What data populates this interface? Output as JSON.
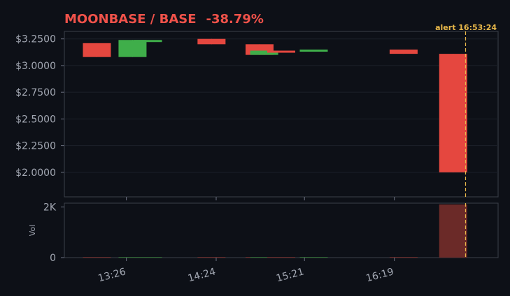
{
  "chart_data": {
    "type": "candlestick",
    "title": "MOONBASE / BASE",
    "change": "-38.79%",
    "colors": {
      "up": "#3fae4a",
      "down": "#e5473f",
      "alert": "#e8b84a",
      "volume_down": "#6b2a28",
      "volume_up": "#2f6b33"
    },
    "y_ticks": [
      "$3.2500",
      "$3.0000",
      "$2.7500",
      "$2.5000",
      "$2.2500",
      "$2.0000"
    ],
    "y_tick_values": [
      3.25,
      3.0,
      2.75,
      2.5,
      2.25,
      2.0
    ],
    "ylim": [
      1.77,
      3.32
    ],
    "x_ticks": [
      "13:26",
      "14:24",
      "15:21",
      "16:19"
    ],
    "x_tick_minutes": [
      806,
      864,
      921,
      979
    ],
    "xlim": [
      766,
      1046
    ],
    "candles": [
      {
        "t": 787,
        "open": 3.21,
        "high": 3.21,
        "low": 3.08,
        "close": 3.08,
        "volume": 4
      },
      {
        "t": 810,
        "open": 3.08,
        "high": 3.24,
        "low": 3.08,
        "close": 3.24,
        "volume": 5
      },
      {
        "t": 820,
        "open": 3.23,
        "high": 3.24,
        "low": 3.23,
        "close": 3.24,
        "volume": 1
      },
      {
        "t": 861,
        "open": 3.25,
        "high": 3.25,
        "low": 3.2,
        "close": 3.2,
        "volume": 1
      },
      {
        "t": 892,
        "open": 3.2,
        "high": 3.2,
        "low": 3.1,
        "close": 3.1,
        "volume": 6
      },
      {
        "t": 895,
        "open": 3.1,
        "high": 3.14,
        "low": 3.1,
        "close": 3.14,
        "volume": 4
      },
      {
        "t": 906,
        "open": 3.14,
        "high": 3.14,
        "low": 3.13,
        "close": 3.13,
        "volume": 1
      },
      {
        "t": 927,
        "open": 3.13,
        "high": 3.15,
        "low": 3.13,
        "close": 3.15,
        "volume": 1
      },
      {
        "t": 985,
        "open": 3.15,
        "high": 3.15,
        "low": 3.11,
        "close": 3.11,
        "volume": 3
      },
      {
        "t": 1017,
        "open": 3.11,
        "high": 3.11,
        "low": 2.0,
        "close": 2.0,
        "volume": 2100
      }
    ],
    "volume_ylabel": "Vol",
    "volume_ticks": [
      "2K",
      "0"
    ],
    "volume_tick_values": [
      2000,
      0
    ],
    "volume_ylim": [
      0,
      2150
    ],
    "alert": {
      "label": "alert 16:53:24",
      "t": 1025
    }
  }
}
